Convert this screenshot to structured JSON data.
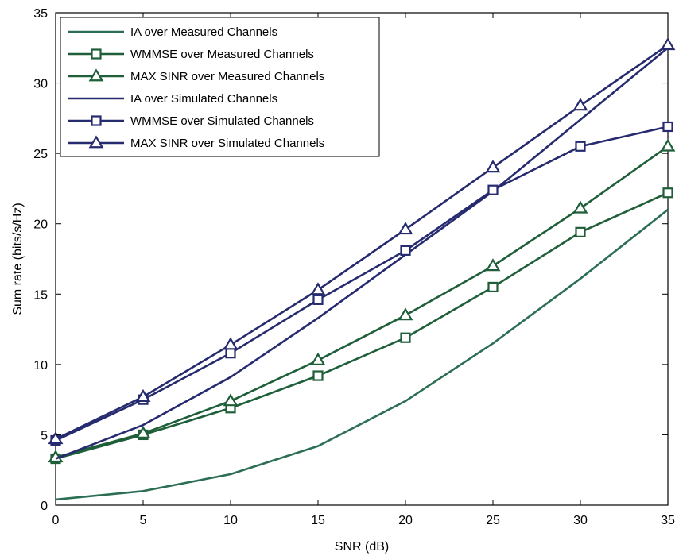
{
  "chart_data": {
    "type": "line",
    "xlabel": "SNR (dB)",
    "ylabel": "Sum rate (bits/s/Hz)",
    "xlim": [
      0,
      35
    ],
    "ylim": [
      0,
      35
    ],
    "xticks": [
      0,
      5,
      10,
      15,
      20,
      25,
      30,
      35
    ],
    "yticks": [
      0,
      5,
      10,
      15,
      20,
      25,
      30,
      35
    ],
    "grid": false,
    "legend_position": "top-left",
    "x": [
      0,
      5,
      10,
      15,
      20,
      25,
      30,
      35
    ],
    "series": [
      {
        "name": "IA over Measured Channels",
        "color": "#2c6e54",
        "marker": "none",
        "values": [
          0.4,
          1.0,
          2.2,
          4.2,
          7.4,
          11.5,
          16.1,
          21.0
        ]
      },
      {
        "name": "WMMSE over Measured Channels",
        "color": "#1e5e38",
        "marker": "square",
        "values": [
          3.3,
          5.0,
          6.9,
          9.2,
          11.9,
          15.5,
          19.4,
          22.2
        ]
      },
      {
        "name": "MAX SINR over Measured Channels",
        "color": "#1e5e38",
        "marker": "triangle",
        "values": [
          3.4,
          5.1,
          7.4,
          10.3,
          13.5,
          17.0,
          21.1,
          25.5
        ]
      },
      {
        "name": "IA over Simulated Channels",
        "color": "#262a6e",
        "marker": "none",
        "values": [
          3.3,
          5.7,
          9.1,
          13.3,
          17.8,
          22.3,
          27.4,
          32.5
        ]
      },
      {
        "name": "WMMSE over Simulated Channels",
        "color": "#262a6e",
        "marker": "square",
        "values": [
          4.6,
          7.5,
          10.8,
          14.6,
          18.1,
          22.4,
          25.5,
          26.9
        ]
      },
      {
        "name": "MAX SINR over Simulated Channels",
        "color": "#262a6e",
        "marker": "triangle",
        "values": [
          4.7,
          7.7,
          11.4,
          15.3,
          19.6,
          24.0,
          28.4,
          32.7
        ]
      }
    ]
  }
}
